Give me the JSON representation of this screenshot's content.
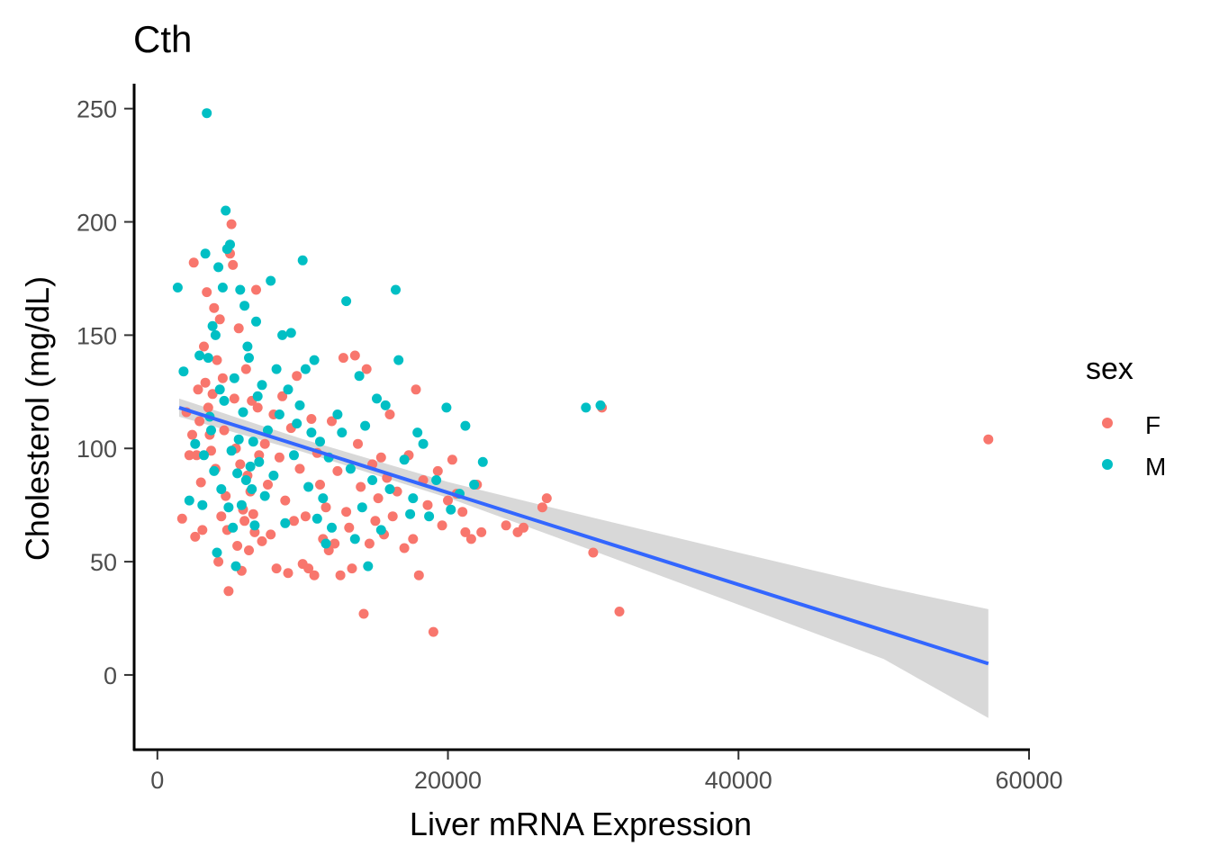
{
  "colors": {
    "F": "#F8766D",
    "M": "#00BFC4",
    "fit_line": "#3366FF",
    "ribbon": "#BEBEBE"
  },
  "chart_data": {
    "type": "scatter",
    "title": "Cth",
    "xlabel": "Liver mRNA Expression",
    "ylabel": "Cholesterol (mg/dL)",
    "xlim": [
      -1600,
      60000
    ],
    "ylim": [
      -33,
      261
    ],
    "x_ticks": [
      0,
      20000,
      40000,
      60000
    ],
    "x_tick_labels": [
      "0",
      "20000",
      "40000",
      "60000"
    ],
    "y_ticks": [
      0,
      50,
      100,
      150,
      200,
      250
    ],
    "y_tick_labels": [
      "0",
      "50",
      "100",
      "150",
      "200",
      "250"
    ],
    "grid": false,
    "legend": {
      "title": "sex",
      "position": "right",
      "entries": [
        "F",
        "M"
      ]
    },
    "smooth": {
      "method": "linear regression",
      "x": [
        1500,
        10000,
        20000,
        30000,
        40000,
        50000,
        57200
      ],
      "y": [
        118,
        101.3,
        81.7,
        62.1,
        42.5,
        22.9,
        5
      ],
      "lower": [
        114,
        98.5,
        78.2,
        54.8,
        31.0,
        7.0,
        -19
      ],
      "upper": [
        122,
        104.1,
        85.2,
        69.4,
        54.0,
        38.8,
        29
      ]
    },
    "series": [
      {
        "name": "F",
        "points": [
          [
            1700,
            69
          ],
          [
            2000,
            116
          ],
          [
            2200,
            97
          ],
          [
            2400,
            106
          ],
          [
            2500,
            182
          ],
          [
            2600,
            61
          ],
          [
            2700,
            97
          ],
          [
            2800,
            126
          ],
          [
            2900,
            112
          ],
          [
            3000,
            85
          ],
          [
            3100,
            64
          ],
          [
            3200,
            145
          ],
          [
            3300,
            129
          ],
          [
            3400,
            169
          ],
          [
            3500,
            118
          ],
          [
            3600,
            106
          ],
          [
            3700,
            99
          ],
          [
            3800,
            124
          ],
          [
            3900,
            162
          ],
          [
            4000,
            91
          ],
          [
            4100,
            139
          ],
          [
            4200,
            50
          ],
          [
            4300,
            157
          ],
          [
            4400,
            70
          ],
          [
            4500,
            131
          ],
          [
            4600,
            108
          ],
          [
            4700,
            79
          ],
          [
            4800,
            64
          ],
          [
            4900,
            37
          ],
          [
            5000,
            186
          ],
          [
            5100,
            199
          ],
          [
            5200,
            181
          ],
          [
            5300,
            122
          ],
          [
            5400,
            100
          ],
          [
            5500,
            57
          ],
          [
            5600,
            153
          ],
          [
            5700,
            93
          ],
          [
            5800,
            46
          ],
          [
            5900,
            73
          ],
          [
            6000,
            68
          ],
          [
            6100,
            135
          ],
          [
            6200,
            88
          ],
          [
            6300,
            55
          ],
          [
            6400,
            81
          ],
          [
            6500,
            121
          ],
          [
            6600,
            71
          ],
          [
            6700,
            63
          ],
          [
            6800,
            170
          ],
          [
            6900,
            118
          ],
          [
            7000,
            97
          ],
          [
            7200,
            59
          ],
          [
            7400,
            102
          ],
          [
            7600,
            84
          ],
          [
            7800,
            62
          ],
          [
            8000,
            115
          ],
          [
            8200,
            47
          ],
          [
            8400,
            96
          ],
          [
            8600,
            123
          ],
          [
            8800,
            77
          ],
          [
            9000,
            45
          ],
          [
            9200,
            109
          ],
          [
            9400,
            68
          ],
          [
            9600,
            132
          ],
          [
            9800,
            91
          ],
          [
            10000,
            49
          ],
          [
            10200,
            70
          ],
          [
            10400,
            47
          ],
          [
            10600,
            113
          ],
          [
            10800,
            44
          ],
          [
            11000,
            98
          ],
          [
            11200,
            84
          ],
          [
            11400,
            60
          ],
          [
            11600,
            74
          ],
          [
            11800,
            55
          ],
          [
            12000,
            112
          ],
          [
            12200,
            58
          ],
          [
            12400,
            90
          ],
          [
            12600,
            44
          ],
          [
            12800,
            140
          ],
          [
            13000,
            72
          ],
          [
            13200,
            65
          ],
          [
            13400,
            47
          ],
          [
            13600,
            141
          ],
          [
            13800,
            102
          ],
          [
            14000,
            83
          ],
          [
            14200,
            27
          ],
          [
            14400,
            135
          ],
          [
            14600,
            58
          ],
          [
            14800,
            93
          ],
          [
            15000,
            68
          ],
          [
            15200,
            78
          ],
          [
            15400,
            96
          ],
          [
            15600,
            62
          ],
          [
            15800,
            87
          ],
          [
            16000,
            115
          ],
          [
            16200,
            70
          ],
          [
            16500,
            81
          ],
          [
            17000,
            56
          ],
          [
            17300,
            97
          ],
          [
            17600,
            60
          ],
          [
            17800,
            126
          ],
          [
            18000,
            44
          ],
          [
            18300,
            86
          ],
          [
            18600,
            75
          ],
          [
            19000,
            19
          ],
          [
            19300,
            90
          ],
          [
            19600,
            66
          ],
          [
            20000,
            77
          ],
          [
            20300,
            95
          ],
          [
            20600,
            80
          ],
          [
            21000,
            72
          ],
          [
            21200,
            63
          ],
          [
            21600,
            60
          ],
          [
            22000,
            84
          ],
          [
            22300,
            63
          ],
          [
            24000,
            66
          ],
          [
            24800,
            63
          ],
          [
            25200,
            65
          ],
          [
            26500,
            74
          ],
          [
            26800,
            78
          ],
          [
            30000,
            54
          ],
          [
            30600,
            118
          ],
          [
            31800,
            28
          ],
          [
            57200,
            104
          ]
        ]
      },
      {
        "name": "M",
        "points": [
          [
            1400,
            171
          ],
          [
            1800,
            134
          ],
          [
            2200,
            77
          ],
          [
            2600,
            102
          ],
          [
            2900,
            141
          ],
          [
            3100,
            75
          ],
          [
            3200,
            97
          ],
          [
            3300,
            186
          ],
          [
            3400,
            248
          ],
          [
            3500,
            140
          ],
          [
            3600,
            114
          ],
          [
            3700,
            108
          ],
          [
            3800,
            154
          ],
          [
            3900,
            90
          ],
          [
            4000,
            150
          ],
          [
            4100,
            54
          ],
          [
            4200,
            180
          ],
          [
            4300,
            126
          ],
          [
            4400,
            82
          ],
          [
            4500,
            171
          ],
          [
            4600,
            121
          ],
          [
            4700,
            205
          ],
          [
            4800,
            188
          ],
          [
            4900,
            74
          ],
          [
            5000,
            190
          ],
          [
            5100,
            99
          ],
          [
            5200,
            65
          ],
          [
            5300,
            131
          ],
          [
            5400,
            48
          ],
          [
            5500,
            89
          ],
          [
            5600,
            104
          ],
          [
            5700,
            170
          ],
          [
            5800,
            75
          ],
          [
            5900,
            116
          ],
          [
            6000,
            163
          ],
          [
            6100,
            86
          ],
          [
            6200,
            145
          ],
          [
            6300,
            140
          ],
          [
            6400,
            92
          ],
          [
            6500,
            82
          ],
          [
            6600,
            103
          ],
          [
            6700,
            66
          ],
          [
            6800,
            156
          ],
          [
            6900,
            123
          ],
          [
            7000,
            94
          ],
          [
            7200,
            128
          ],
          [
            7400,
            79
          ],
          [
            7600,
            108
          ],
          [
            7800,
            174
          ],
          [
            8000,
            88
          ],
          [
            8200,
            135
          ],
          [
            8400,
            115
          ],
          [
            8600,
            150
          ],
          [
            8800,
            67
          ],
          [
            9000,
            126
          ],
          [
            9200,
            151
          ],
          [
            9400,
            97
          ],
          [
            9600,
            111
          ],
          [
            9800,
            119
          ],
          [
            10000,
            183
          ],
          [
            10200,
            135
          ],
          [
            10400,
            83
          ],
          [
            10600,
            107
          ],
          [
            10800,
            139
          ],
          [
            11000,
            69
          ],
          [
            11200,
            103
          ],
          [
            11400,
            78
          ],
          [
            11600,
            58
          ],
          [
            11800,
            96
          ],
          [
            12000,
            65
          ],
          [
            12400,
            115
          ],
          [
            12700,
            107
          ],
          [
            13000,
            165
          ],
          [
            13300,
            91
          ],
          [
            13600,
            60
          ],
          [
            13900,
            132
          ],
          [
            14100,
            74
          ],
          [
            14300,
            110
          ],
          [
            14500,
            48
          ],
          [
            14800,
            86
          ],
          [
            15100,
            122
          ],
          [
            15400,
            64
          ],
          [
            15700,
            119
          ],
          [
            16000,
            82
          ],
          [
            16400,
            170
          ],
          [
            16600,
            139
          ],
          [
            17000,
            95
          ],
          [
            17400,
            71
          ],
          [
            17600,
            78
          ],
          [
            17900,
            107
          ],
          [
            18300,
            102
          ],
          [
            18700,
            70
          ],
          [
            19200,
            86
          ],
          [
            19900,
            118
          ],
          [
            20200,
            73
          ],
          [
            20800,
            80
          ],
          [
            21200,
            110
          ],
          [
            21800,
            84
          ],
          [
            22400,
            94
          ],
          [
            29500,
            118
          ],
          [
            30500,
            119
          ]
        ]
      }
    ]
  }
}
